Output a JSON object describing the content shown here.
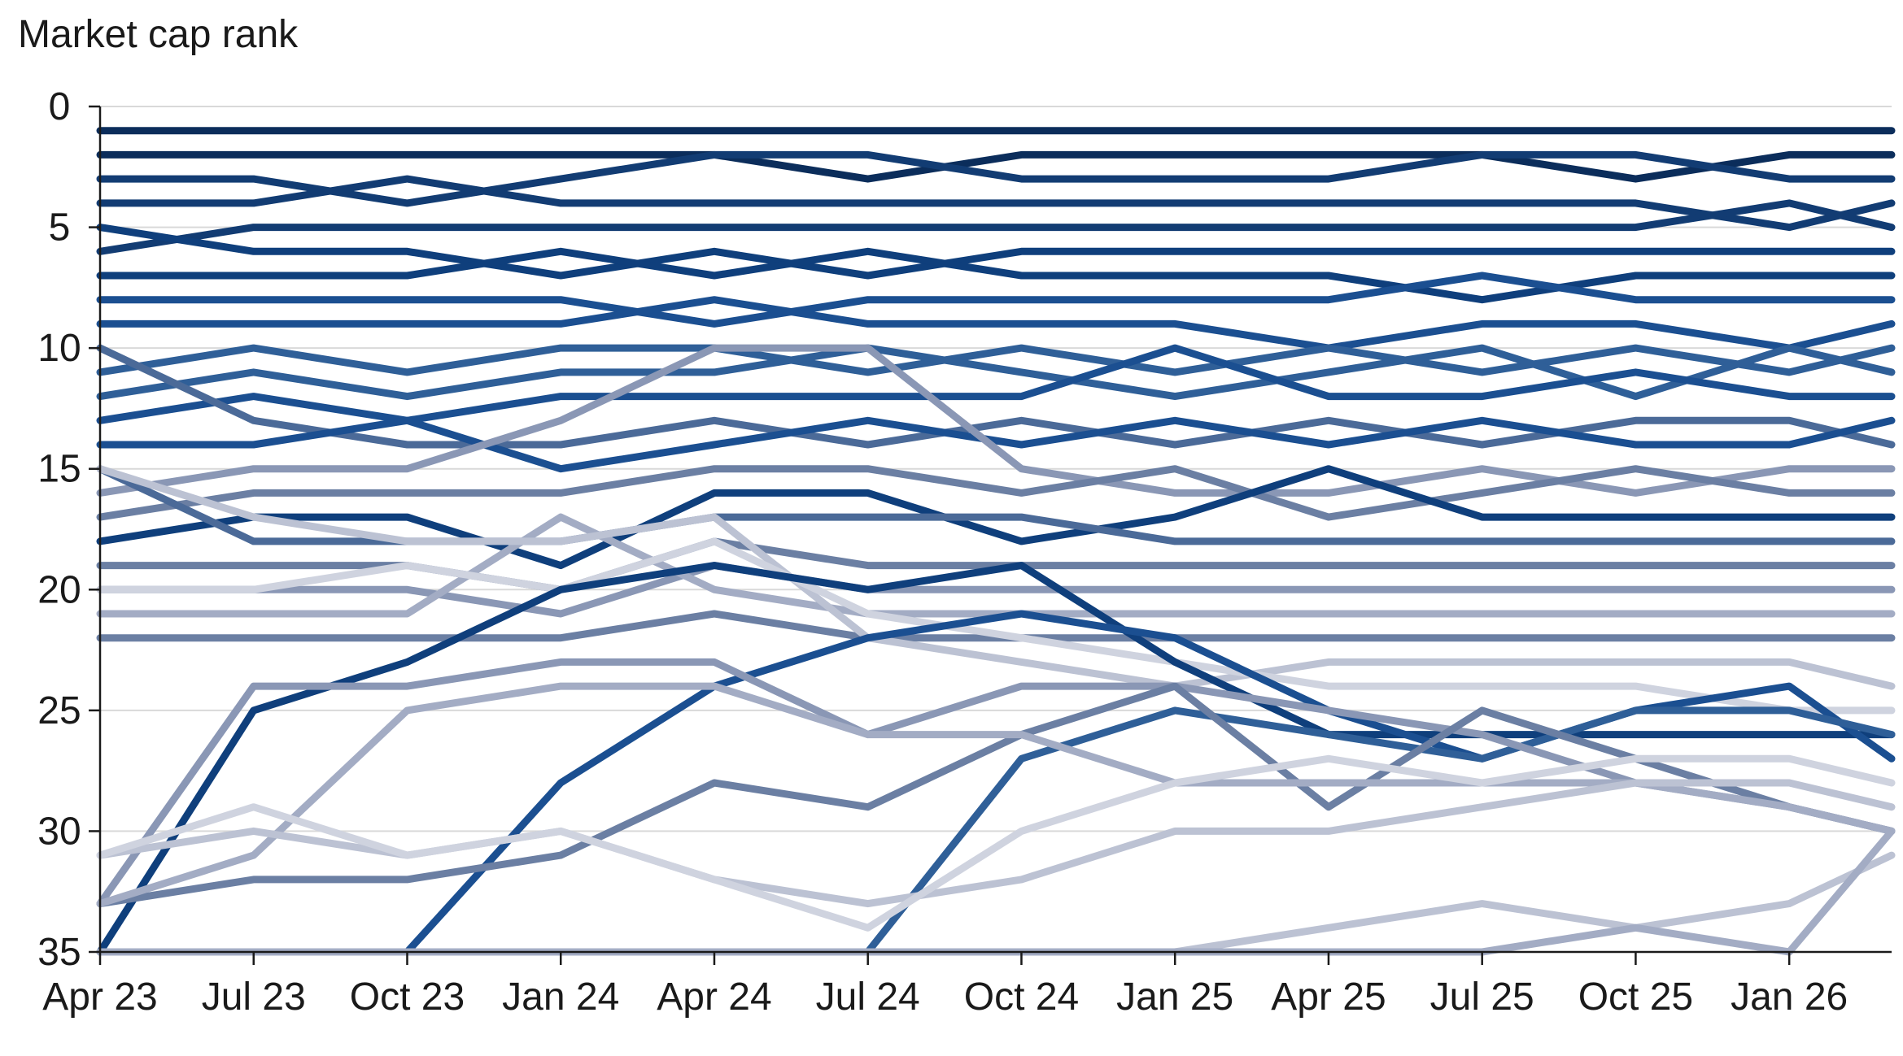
{
  "chart_data": {
    "type": "line",
    "ylabel": "Market cap rank",
    "y_inverted": true,
    "ylim": [
      0,
      35
    ],
    "y_ticks": [
      0,
      5,
      10,
      15,
      20,
      25,
      30,
      35
    ],
    "x_ticks": [
      "Apr 23",
      "Jul 23",
      "Oct 23",
      "Jan 24",
      "Apr 24",
      "Jul 24",
      "Oct 24",
      "Jan 25",
      "Apr 25",
      "Jul 25",
      "Oct 25",
      "Jan 26"
    ],
    "x_months": [
      "2023-04",
      "2023-07",
      "2023-10",
      "2024-01",
      "2024-04",
      "2024-07",
      "2024-10",
      "2025-01",
      "2025-04",
      "2025-07",
      "2025-10",
      "2026-01",
      "2026-03"
    ],
    "grid": "horizontal",
    "colors": [
      "#0b2d5b",
      "#123c73",
      "#0f3f7c",
      "#1b4f91",
      "#2f5f98",
      "#4b6a98",
      "#6b7fa3",
      "#8a97b5",
      "#a3acc4",
      "#bcc2d3",
      "#cfd3df"
    ],
    "series": [
      {
        "color": "#0b2d5b",
        "values": [
          1,
          1,
          1,
          1,
          1,
          1,
          1,
          1,
          1,
          1,
          1,
          1,
          1
        ]
      },
      {
        "color": "#0b2d5b",
        "values": [
          2,
          2,
          2,
          2,
          2,
          3,
          2,
          2,
          2,
          2,
          3,
          2,
          2
        ]
      },
      {
        "color": "#123c73",
        "values": [
          3,
          3,
          4,
          3,
          2,
          2,
          3,
          3,
          3,
          2,
          2,
          3,
          3
        ]
      },
      {
        "color": "#123c73",
        "values": [
          4,
          4,
          3,
          4,
          4,
          4,
          4,
          4,
          4,
          4,
          4,
          5,
          4
        ]
      },
      {
        "color": "#123c73",
        "values": [
          6,
          5,
          5,
          5,
          5,
          5,
          5,
          5,
          5,
          5,
          5,
          4,
          5
        ]
      },
      {
        "color": "#0f3f7c",
        "values": [
          5,
          6,
          6,
          7,
          6,
          7,
          6,
          6,
          6,
          6,
          6,
          6,
          6
        ]
      },
      {
        "color": "#0f3f7c",
        "values": [
          7,
          7,
          7,
          6,
          7,
          6,
          7,
          7,
          7,
          8,
          7,
          7,
          7
        ]
      },
      {
        "color": "#1b4f91",
        "values": [
          8,
          8,
          8,
          8,
          9,
          8,
          8,
          8,
          8,
          7,
          8,
          8,
          8
        ]
      },
      {
        "color": "#1b4f91",
        "values": [
          9,
          9,
          9,
          9,
          8,
          9,
          9,
          9,
          10,
          9,
          9,
          10,
          9
        ]
      },
      {
        "color": "#2f5f98",
        "values": [
          11,
          10,
          11,
          10,
          10,
          11,
          10,
          11,
          10,
          11,
          10,
          11,
          10
        ]
      },
      {
        "color": "#2f5f98",
        "values": [
          12,
          11,
          12,
          11,
          11,
          10,
          11,
          12,
          11,
          10,
          12,
          10,
          11
        ]
      },
      {
        "color": "#1b4f91",
        "values": [
          13,
          12,
          13,
          12,
          12,
          12,
          12,
          10,
          12,
          12,
          11,
          12,
          12
        ]
      },
      {
        "color": "#4b6a98",
        "values": [
          10,
          13,
          14,
          14,
          13,
          14,
          13,
          14,
          13,
          14,
          13,
          13,
          14
        ]
      },
      {
        "color": "#1b4f91",
        "values": [
          14,
          14,
          13,
          15,
          14,
          13,
          14,
          13,
          14,
          13,
          14,
          14,
          13
        ]
      },
      {
        "color": "#8a97b5",
        "values": [
          16,
          15,
          15,
          13,
          10,
          10,
          15,
          16,
          16,
          15,
          16,
          15,
          15
        ]
      },
      {
        "color": "#6b7fa3",
        "values": [
          17,
          16,
          16,
          16,
          15,
          15,
          16,
          15,
          17,
          16,
          15,
          16,
          16
        ]
      },
      {
        "color": "#0f3f7c",
        "values": [
          18,
          17,
          17,
          19,
          16,
          16,
          18,
          17,
          15,
          17,
          17,
          17,
          17
        ]
      },
      {
        "color": "#4b6a98",
        "values": [
          15,
          18,
          18,
          18,
          17,
          17,
          17,
          18,
          18,
          18,
          18,
          18,
          18
        ]
      },
      {
        "color": "#6b7fa3",
        "values": [
          19,
          19,
          19,
          20,
          18,
          19,
          19,
          19,
          19,
          19,
          19,
          19,
          19
        ]
      },
      {
        "color": "#8a97b5",
        "values": [
          20,
          20,
          20,
          21,
          19,
          20,
          20,
          20,
          20,
          20,
          20,
          20,
          20
        ]
      },
      {
        "color": "#a3acc4",
        "values": [
          21,
          21,
          21,
          17,
          20,
          21,
          21,
          21,
          21,
          21,
          21,
          21,
          21
        ]
      },
      {
        "color": "#6b7fa3",
        "values": [
          22,
          22,
          22,
          22,
          21,
          22,
          22,
          22,
          22,
          22,
          22,
          22,
          22
        ]
      },
      {
        "color": "#bcc2d3",
        "values": [
          15,
          17,
          18,
          18,
          17,
          22,
          23,
          24,
          23,
          23,
          23,
          23,
          24
        ]
      },
      {
        "color": "#cfd3df",
        "values": [
          20,
          20,
          19,
          20,
          18,
          21,
          22,
          23,
          24,
          24,
          24,
          25,
          25
        ]
      },
      {
        "color": "#0f3f7c",
        "values": [
          35,
          25,
          23,
          20,
          19,
          20,
          19,
          23,
          26,
          26,
          26,
          26,
          26
        ]
      },
      {
        "color": "#1b4f91",
        "values": [
          35,
          35,
          35,
          28,
          24,
          22,
          21,
          22,
          25,
          27,
          25,
          24,
          27
        ]
      },
      {
        "color": "#2f5f98",
        "values": [
          35,
          35,
          35,
          35,
          35,
          35,
          27,
          25,
          26,
          27,
          25,
          25,
          26
        ]
      },
      {
        "color": "#8a97b5",
        "values": [
          33,
          24,
          24,
          23,
          23,
          26,
          24,
          24,
          25,
          26,
          28,
          29,
          30
        ]
      },
      {
        "color": "#6b7fa3",
        "values": [
          33,
          32,
          32,
          31,
          28,
          29,
          26,
          24,
          29,
          25,
          27,
          29,
          30
        ]
      },
      {
        "color": "#a3acc4",
        "values": [
          33,
          31,
          25,
          24,
          24,
          26,
          26,
          28,
          28,
          28,
          28,
          29,
          30
        ]
      },
      {
        "color": "#bcc2d3",
        "values": [
          31,
          30,
          31,
          30,
          32,
          33,
          32,
          30,
          30,
          29,
          28,
          28,
          29
        ]
      },
      {
        "color": "#cfd3df",
        "values": [
          31,
          29,
          31,
          30,
          32,
          34,
          30,
          28,
          27,
          28,
          27,
          27,
          28
        ]
      },
      {
        "color": "#bcc2d3",
        "values": [
          35,
          35,
          35,
          35,
          35,
          35,
          35,
          35,
          34,
          33,
          34,
          33,
          31
        ]
      },
      {
        "color": "#a3acc4",
        "values": [
          35,
          35,
          35,
          35,
          35,
          35,
          35,
          35,
          35,
          35,
          34,
          35,
          30
        ]
      }
    ]
  }
}
